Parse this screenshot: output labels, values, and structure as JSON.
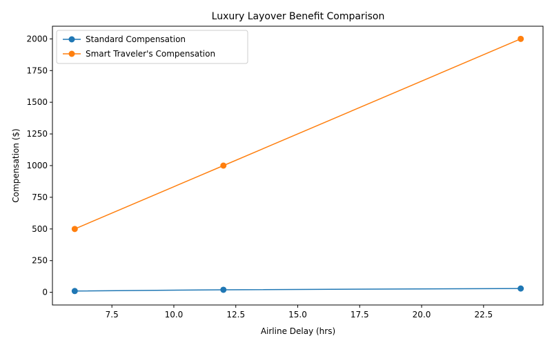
{
  "chart_data": {
    "type": "line",
    "title": "Luxury Layover Benefit Comparison",
    "xlabel": "Airline Delay (hrs)",
    "ylabel": "Compensation ($)",
    "xlim": [
      5.1,
      24.9
    ],
    "ylim": [
      -100,
      2100
    ],
    "xticks": [
      "7.5",
      "10.0",
      "12.5",
      "15.0",
      "17.5",
      "20.0",
      "22.5"
    ],
    "yticks": [
      "0",
      "250",
      "500",
      "750",
      "1000",
      "1250",
      "1500",
      "1750",
      "2000"
    ],
    "legend_position": "top-left",
    "grid": false,
    "series": [
      {
        "name": "Standard Compensation",
        "color": "#1f77b4",
        "marker": "circle",
        "x": [
          6,
          12,
          24
        ],
        "values": [
          10,
          20,
          30
        ]
      },
      {
        "name": "Smart Traveler's Compensation",
        "color": "#ff7f0e",
        "marker": "circle",
        "x": [
          6,
          12,
          24
        ],
        "values": [
          500,
          1000,
          2000
        ]
      }
    ]
  }
}
